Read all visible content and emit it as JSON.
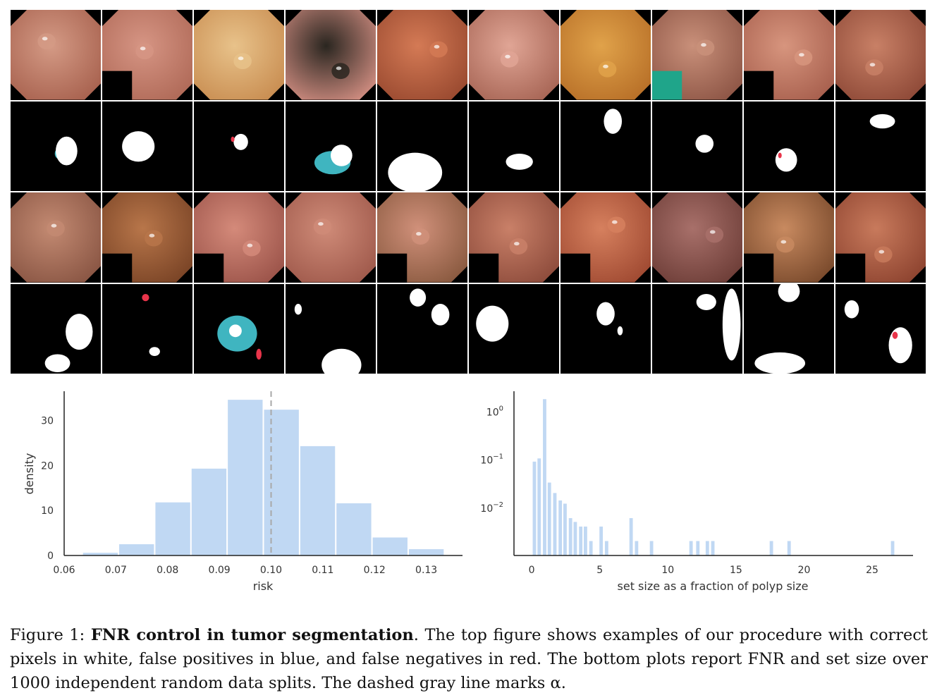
{
  "figure": {
    "grid_rows": [
      {
        "kind": "endoscopy",
        "row": 1
      },
      {
        "kind": "mask",
        "row": 1
      },
      {
        "kind": "endoscopy",
        "row": 2
      },
      {
        "kind": "mask",
        "row": 2
      }
    ],
    "legend_colors": {
      "correct": "#ffffff",
      "false_positive": "#3fb5c0",
      "false_negative": "#e8344a",
      "background": "#000000",
      "tissue": "#c8735f",
      "overlay_teal": "#1fa58a"
    }
  },
  "charts": [
    {
      "chart_data": {
        "type": "bar",
        "title": "",
        "xlabel": "risk",
        "ylabel": "density",
        "xlim": [
          0.06,
          0.137
        ],
        "ylim": [
          0,
          36.5
        ],
        "xticks": [
          "0.06",
          "0.07",
          "0.08",
          "0.09",
          "0.10",
          "0.11",
          "0.12",
          "0.13"
        ],
        "yticks": [
          "0",
          "10",
          "20",
          "30"
        ],
        "bin_width": 0.007,
        "bins": [
          {
            "x0": 0.0635,
            "height": 0.6
          },
          {
            "x0": 0.0705,
            "height": 2.5
          },
          {
            "x0": 0.0775,
            "height": 11.8
          },
          {
            "x0": 0.0845,
            "height": 19.3
          },
          {
            "x0": 0.0915,
            "height": 34.6
          },
          {
            "x0": 0.0985,
            "height": 32.4
          },
          {
            "x0": 0.1055,
            "height": 24.3
          },
          {
            "x0": 0.1125,
            "height": 11.6
          },
          {
            "x0": 0.1195,
            "height": 4.0
          },
          {
            "x0": 0.1265,
            "height": 1.4
          }
        ],
        "alpha_line": 0.1,
        "bar_color": "#c0d8f3",
        "alpha_line_color": "#a8a8a8",
        "grid": false
      }
    },
    {
      "chart_data": {
        "type": "bar",
        "title": "",
        "xlabel": "set size as a fraction of polyp size",
        "ylabel": "",
        "yscale": "log",
        "xlim": [
          -1.3,
          28
        ],
        "ylim_log10": [
          -3.0,
          0.42
        ],
        "xticks": [
          "0",
          "5",
          "10",
          "15",
          "20",
          "25"
        ],
        "yticks": [
          "10^0",
          "10^-1",
          "10^-2"
        ],
        "bin_width": 0.25,
        "bins": [
          {
            "x": 0.2,
            "value": 0.09
          },
          {
            "x": 0.55,
            "value": 0.105
          },
          {
            "x": 0.95,
            "value": 1.8
          },
          {
            "x": 1.3,
            "value": 0.033
          },
          {
            "x": 1.7,
            "value": 0.02
          },
          {
            "x": 2.1,
            "value": 0.014
          },
          {
            "x": 2.45,
            "value": 0.012
          },
          {
            "x": 2.85,
            "value": 0.006
          },
          {
            "x": 3.2,
            "value": 0.005
          },
          {
            "x": 3.6,
            "value": 0.004
          },
          {
            "x": 3.95,
            "value": 0.004
          },
          {
            "x": 4.35,
            "value": 0.002
          },
          {
            "x": 5.1,
            "value": 0.004
          },
          {
            "x": 5.5,
            "value": 0.002
          },
          {
            "x": 7.3,
            "value": 0.006
          },
          {
            "x": 7.7,
            "value": 0.002
          },
          {
            "x": 8.8,
            "value": 0.002
          },
          {
            "x": 11.7,
            "value": 0.002
          },
          {
            "x": 12.2,
            "value": 0.002
          },
          {
            "x": 12.9,
            "value": 0.002
          },
          {
            "x": 13.3,
            "value": 0.002
          },
          {
            "x": 17.6,
            "value": 0.002
          },
          {
            "x": 18.9,
            "value": 0.002
          },
          {
            "x": 26.5,
            "value": 0.002
          }
        ],
        "bar_color": "#c0d8f3",
        "grid": false
      }
    }
  ],
  "caption": {
    "prefix": "Figure 1: ",
    "bold": "FNR control in tumor segmentation",
    "rest": ". The top figure shows examples of our procedure with correct pixels in white, false positives in blue, and false negatives in red. The bottom plots report FNR and set size over 1000 independent random data splits. The dashed gray line marks α."
  }
}
